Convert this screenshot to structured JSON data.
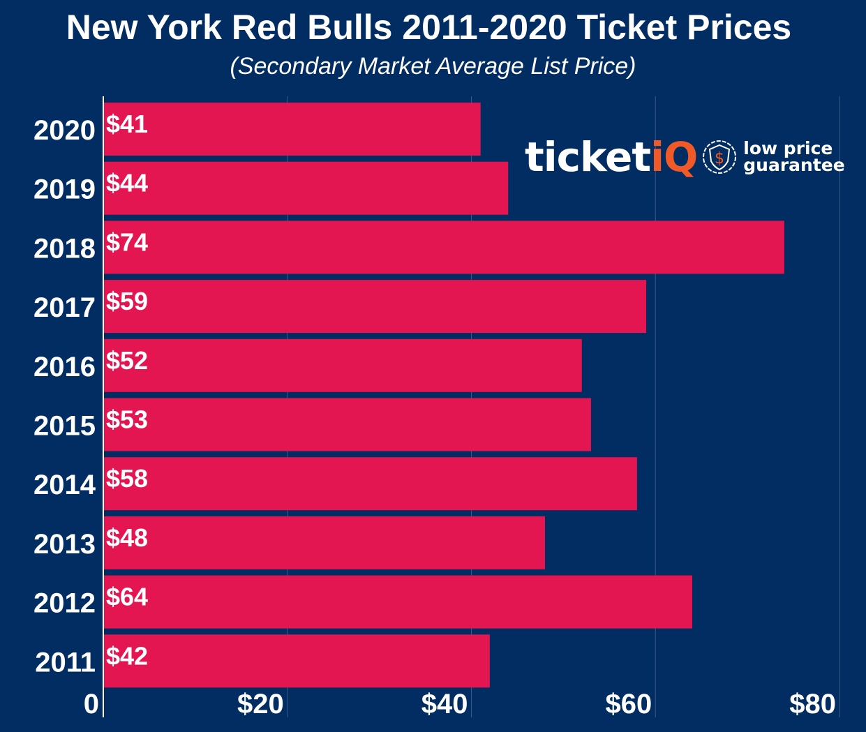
{
  "chart_data": {
    "type": "bar",
    "orientation": "horizontal",
    "title": "New York Red Bulls 2011-2020 Ticket Prices",
    "subtitle": "(Secondary Market Average List Price)",
    "categories": [
      "2020",
      "2019",
      "2018",
      "2017",
      "2016",
      "2015",
      "2014",
      "2013",
      "2012",
      "2011"
    ],
    "values": [
      41,
      44,
      74,
      59,
      52,
      53,
      58,
      48,
      64,
      42
    ],
    "data_labels": [
      "$41",
      "$44",
      "$74",
      "$59",
      "$52",
      "$53",
      "$58",
      "$48",
      "$64",
      "$42"
    ],
    "xlim": [
      0,
      80
    ],
    "x_ticks": [
      0,
      20,
      40,
      60,
      80
    ],
    "x_tick_labels": [
      "0",
      "$20",
      "$40",
      "$60",
      "$80"
    ],
    "grid": true,
    "colors": {
      "background": "#022d63",
      "bar": "#e31651",
      "text": "#ffffff",
      "accent": "#f05a28"
    }
  },
  "logo": {
    "brand_main": "ticket",
    "brand_accent": "iQ",
    "tagline_1": "low price",
    "tagline_2": "guarantee"
  }
}
